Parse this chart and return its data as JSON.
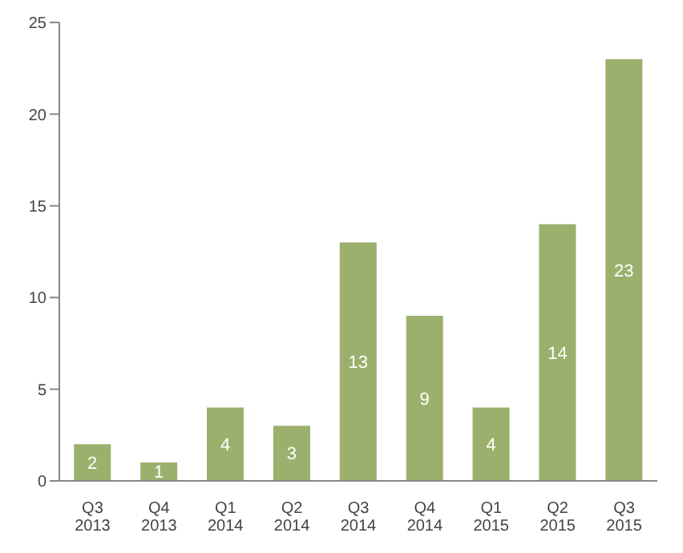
{
  "chart_data": {
    "type": "bar",
    "categories": [
      "Q3 2013",
      "Q4 2013",
      "Q1 2014",
      "Q2 2014",
      "Q3 2014",
      "Q4 2014",
      "Q1 2015",
      "Q2 2015",
      "Q3 2015"
    ],
    "values": [
      2,
      1,
      4,
      3,
      13,
      9,
      4,
      14,
      23
    ],
    "color": "#9bb06d",
    "ylim": [
      0,
      25
    ],
    "yticks": [
      0,
      5,
      10,
      15,
      20,
      25
    ],
    "grid": false,
    "data_labels": true
  }
}
